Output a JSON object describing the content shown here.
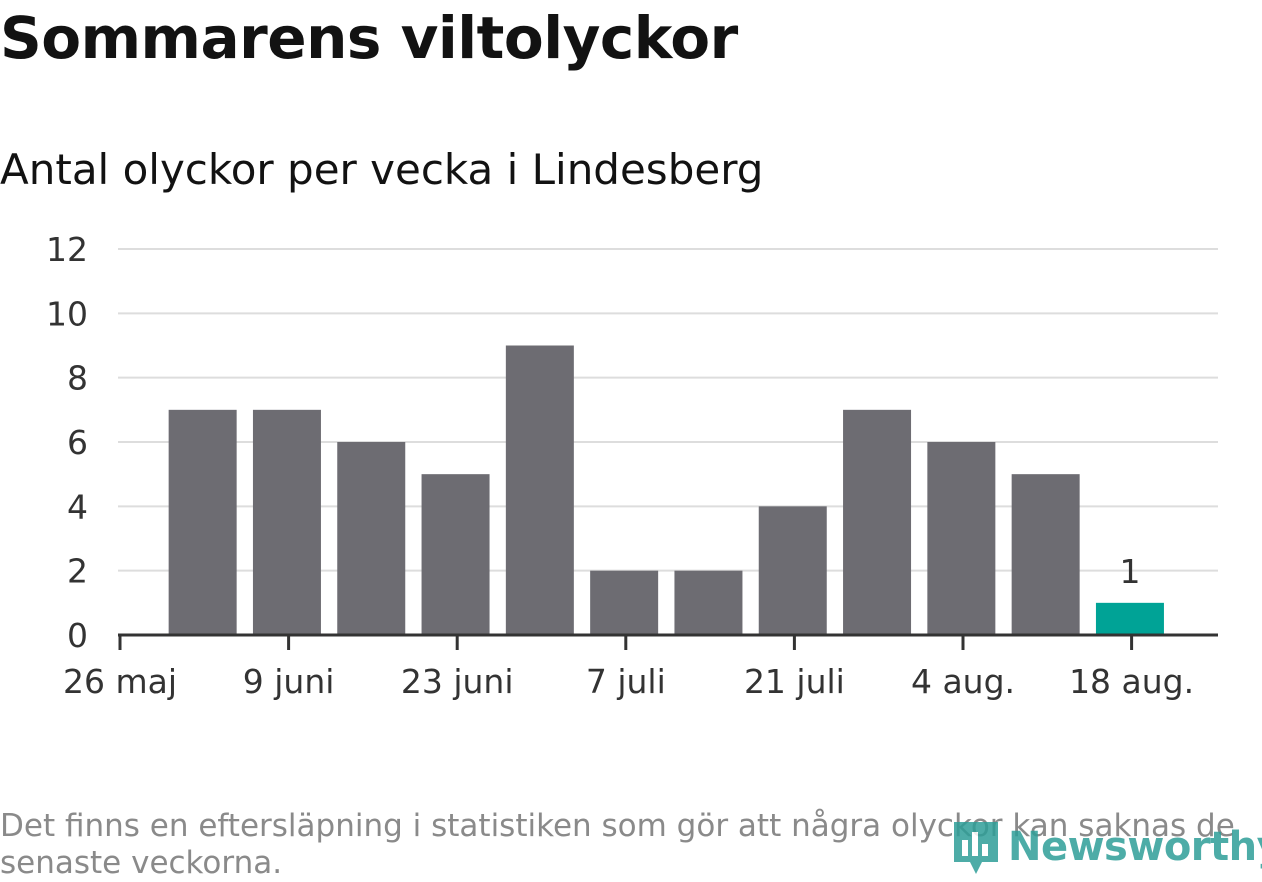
{
  "header": {
    "title": "Sommarens viltolyckor",
    "subtitle": "Antal olyckor per vecka i Lindesberg"
  },
  "chart_data": {
    "type": "bar",
    "title": "Sommarens viltolyckor",
    "subtitle": "Antal olyckor per vecka i Lindesberg",
    "xlabel": "",
    "ylabel": "",
    "ylim": [
      0,
      12
    ],
    "y_ticks": [
      0,
      2,
      4,
      6,
      8,
      10,
      12
    ],
    "x_tick_labels": [
      "26 maj",
      "9 juni",
      "23 juni",
      "7 juli",
      "21 juli",
      "4 aug.",
      "18 aug."
    ],
    "grid": true,
    "series": [
      {
        "values": [
          7,
          7,
          6,
          5,
          9,
          2,
          2,
          4,
          7,
          6,
          5,
          1
        ]
      }
    ],
    "highlight_index": 11,
    "data_labels": [
      {
        "index": 11,
        "text": "1"
      }
    ],
    "colors": {
      "bar": "#6d6c72",
      "highlight": "#00a396",
      "grid": "#dddddd",
      "axis": "#333333"
    }
  },
  "footnote": "Det finns en eftersläpning i statistiken som gör att några olyckor kan saknas de senaste veckorna.",
  "brand": {
    "name": "Newsworthy",
    "color": "#2e9e98"
  }
}
